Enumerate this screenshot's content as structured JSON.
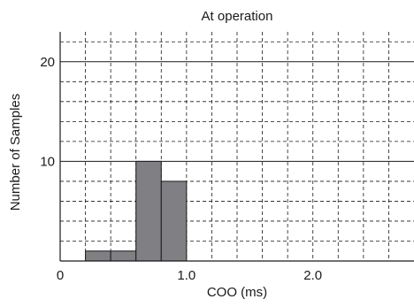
{
  "chart_data": {
    "type": "bar",
    "title": "At operation",
    "xlabel": "COO (ms)",
    "ylabel": "Number of Samples",
    "xlim": [
      0,
      2.8
    ],
    "ylim": [
      0,
      23
    ],
    "x_ticks": [
      {
        "value": 0,
        "label": "0"
      },
      {
        "value": 1.0,
        "label": "1.0"
      },
      {
        "value": 2.0,
        "label": "2.0"
      }
    ],
    "y_ticks": [
      {
        "value": 10,
        "label": "10"
      },
      {
        "value": 20,
        "label": "20"
      }
    ],
    "grid": true,
    "bin_width": 0.2,
    "bins": [
      {
        "x0": 0.2,
        "x1": 0.4,
        "value": 1
      },
      {
        "x0": 0.4,
        "x1": 0.6,
        "value": 1
      },
      {
        "x0": 0.6,
        "x1": 0.8,
        "value": 10
      },
      {
        "x0": 0.8,
        "x1": 1.0,
        "value": 8
      }
    ],
    "bar_color": "#7f7f84",
    "bar_edge_color": "#1a1a1a"
  }
}
